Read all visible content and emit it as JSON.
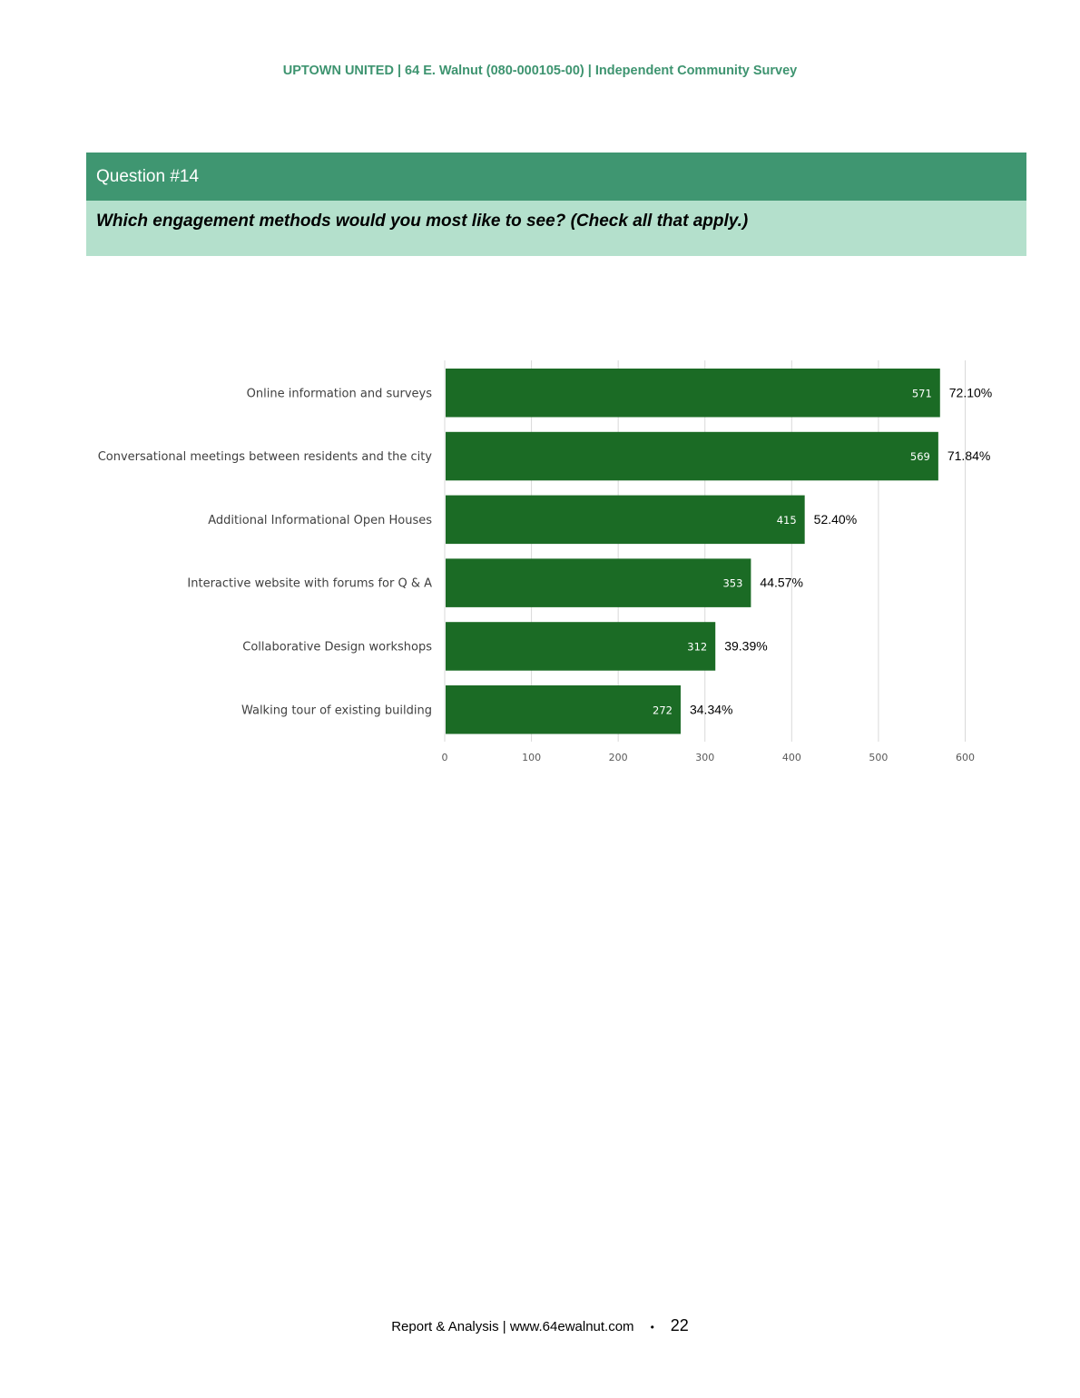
{
  "header": {
    "line": "UPTOWN UNITED | 64 E. Walnut (080-000105-00) | Independent Community Survey"
  },
  "question": {
    "number_label": "Question #14",
    "text": "Which engagement methods would you most like to see? (Check all that apply.)"
  },
  "chart_data": {
    "type": "bar",
    "orientation": "horizontal",
    "categories": [
      "Online information and surveys",
      "Conversational meetings between residents and the city",
      "Additional Informational Open Houses",
      "Interactive website with forums for Q & A",
      "Collaborative Design workshops",
      "Walking tour of existing building"
    ],
    "values": [
      571,
      569,
      415,
      353,
      312,
      272
    ],
    "percent_labels": [
      "72.10%",
      "71.84%",
      "52.40%",
      "44.57%",
      "39.39%",
      "34.34%"
    ],
    "xlim": [
      0,
      600
    ],
    "xticks": [
      0,
      100,
      200,
      300,
      400,
      500,
      600
    ],
    "grid": "vertical",
    "bar_color": "#1b6b25"
  },
  "footer": {
    "text": "Report & Analysis | www.64ewalnut.com",
    "bullet": "•",
    "page_number": "22"
  }
}
